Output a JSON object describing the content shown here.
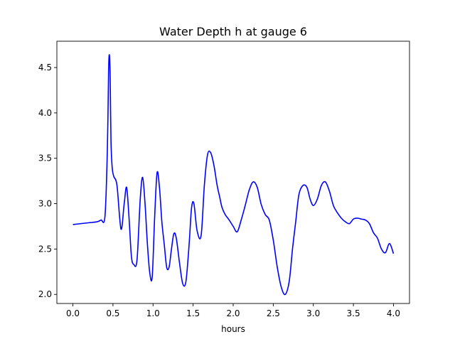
{
  "chart_data": {
    "type": "line",
    "title": "Water Depth h at gauge 6",
    "xlabel": "hours",
    "ylabel": "",
    "xlim": [
      -0.2,
      4.2
    ],
    "ylim": [
      1.9,
      4.79
    ],
    "x_ticks": [
      0.0,
      0.5,
      1.0,
      1.5,
      2.0,
      2.5,
      3.0,
      3.5,
      4.0
    ],
    "x_tick_labels": [
      "0.0",
      "0.5",
      "1.0",
      "1.5",
      "2.0",
      "2.5",
      "3.0",
      "3.5",
      "4.0"
    ],
    "y_ticks": [
      2.0,
      2.5,
      3.0,
      3.5,
      4.0,
      4.5
    ],
    "y_tick_labels": [
      "2.0",
      "2.5",
      "3.0",
      "3.5",
      "4.0",
      "4.5"
    ],
    "grid": false,
    "series": [
      {
        "name": "",
        "color": "#0000ff",
        "x": [
          0.0,
          0.1,
          0.2,
          0.3,
          0.35,
          0.4,
          0.43,
          0.445,
          0.455,
          0.465,
          0.475,
          0.49,
          0.51,
          0.55,
          0.6,
          0.64,
          0.67,
          0.7,
          0.73,
          0.76,
          0.8,
          0.84,
          0.87,
          0.9,
          0.93,
          0.96,
          0.99,
          1.02,
          1.05,
          1.08,
          1.11,
          1.14,
          1.17,
          1.2,
          1.23,
          1.26,
          1.29,
          1.33,
          1.37,
          1.41,
          1.45,
          1.48,
          1.51,
          1.55,
          1.6,
          1.64,
          1.68,
          1.72,
          1.76,
          1.8,
          1.83,
          1.86,
          1.9,
          1.95,
          2.0,
          2.05,
          2.1,
          2.15,
          2.2,
          2.25,
          2.3,
          2.35,
          2.4,
          2.45,
          2.5,
          2.55,
          2.6,
          2.65,
          2.7,
          2.74,
          2.78,
          2.82,
          2.87,
          2.92,
          2.96,
          3.0,
          3.05,
          3.1,
          3.15,
          3.2,
          3.25,
          3.3,
          3.35,
          3.4,
          3.45,
          3.5,
          3.55,
          3.6,
          3.65,
          3.7,
          3.75,
          3.8,
          3.85,
          3.9,
          3.95,
          4.0
        ],
        "y": [
          2.77,
          2.78,
          2.79,
          2.8,
          2.82,
          2.86,
          3.6,
          4.45,
          4.64,
          4.4,
          3.7,
          3.4,
          3.3,
          3.2,
          2.72,
          3.0,
          3.18,
          2.85,
          2.42,
          2.33,
          2.38,
          3.05,
          3.29,
          3.0,
          2.55,
          2.23,
          2.2,
          2.85,
          3.34,
          3.18,
          2.8,
          2.55,
          2.3,
          2.3,
          2.5,
          2.67,
          2.62,
          2.35,
          2.12,
          2.14,
          2.55,
          2.95,
          3.0,
          2.7,
          2.65,
          3.2,
          3.54,
          3.56,
          3.42,
          3.2,
          3.08,
          2.96,
          2.88,
          2.82,
          2.75,
          2.69,
          2.82,
          2.98,
          3.15,
          3.24,
          3.18,
          2.99,
          2.88,
          2.82,
          2.6,
          2.3,
          2.08,
          2.0,
          2.15,
          2.5,
          2.8,
          3.1,
          3.2,
          3.18,
          3.05,
          2.98,
          3.05,
          3.2,
          3.24,
          3.14,
          2.98,
          2.9,
          2.84,
          2.8,
          2.78,
          2.83,
          2.84,
          2.83,
          2.82,
          2.78,
          2.68,
          2.62,
          2.5,
          2.46,
          2.56,
          2.45
        ]
      }
    ]
  }
}
